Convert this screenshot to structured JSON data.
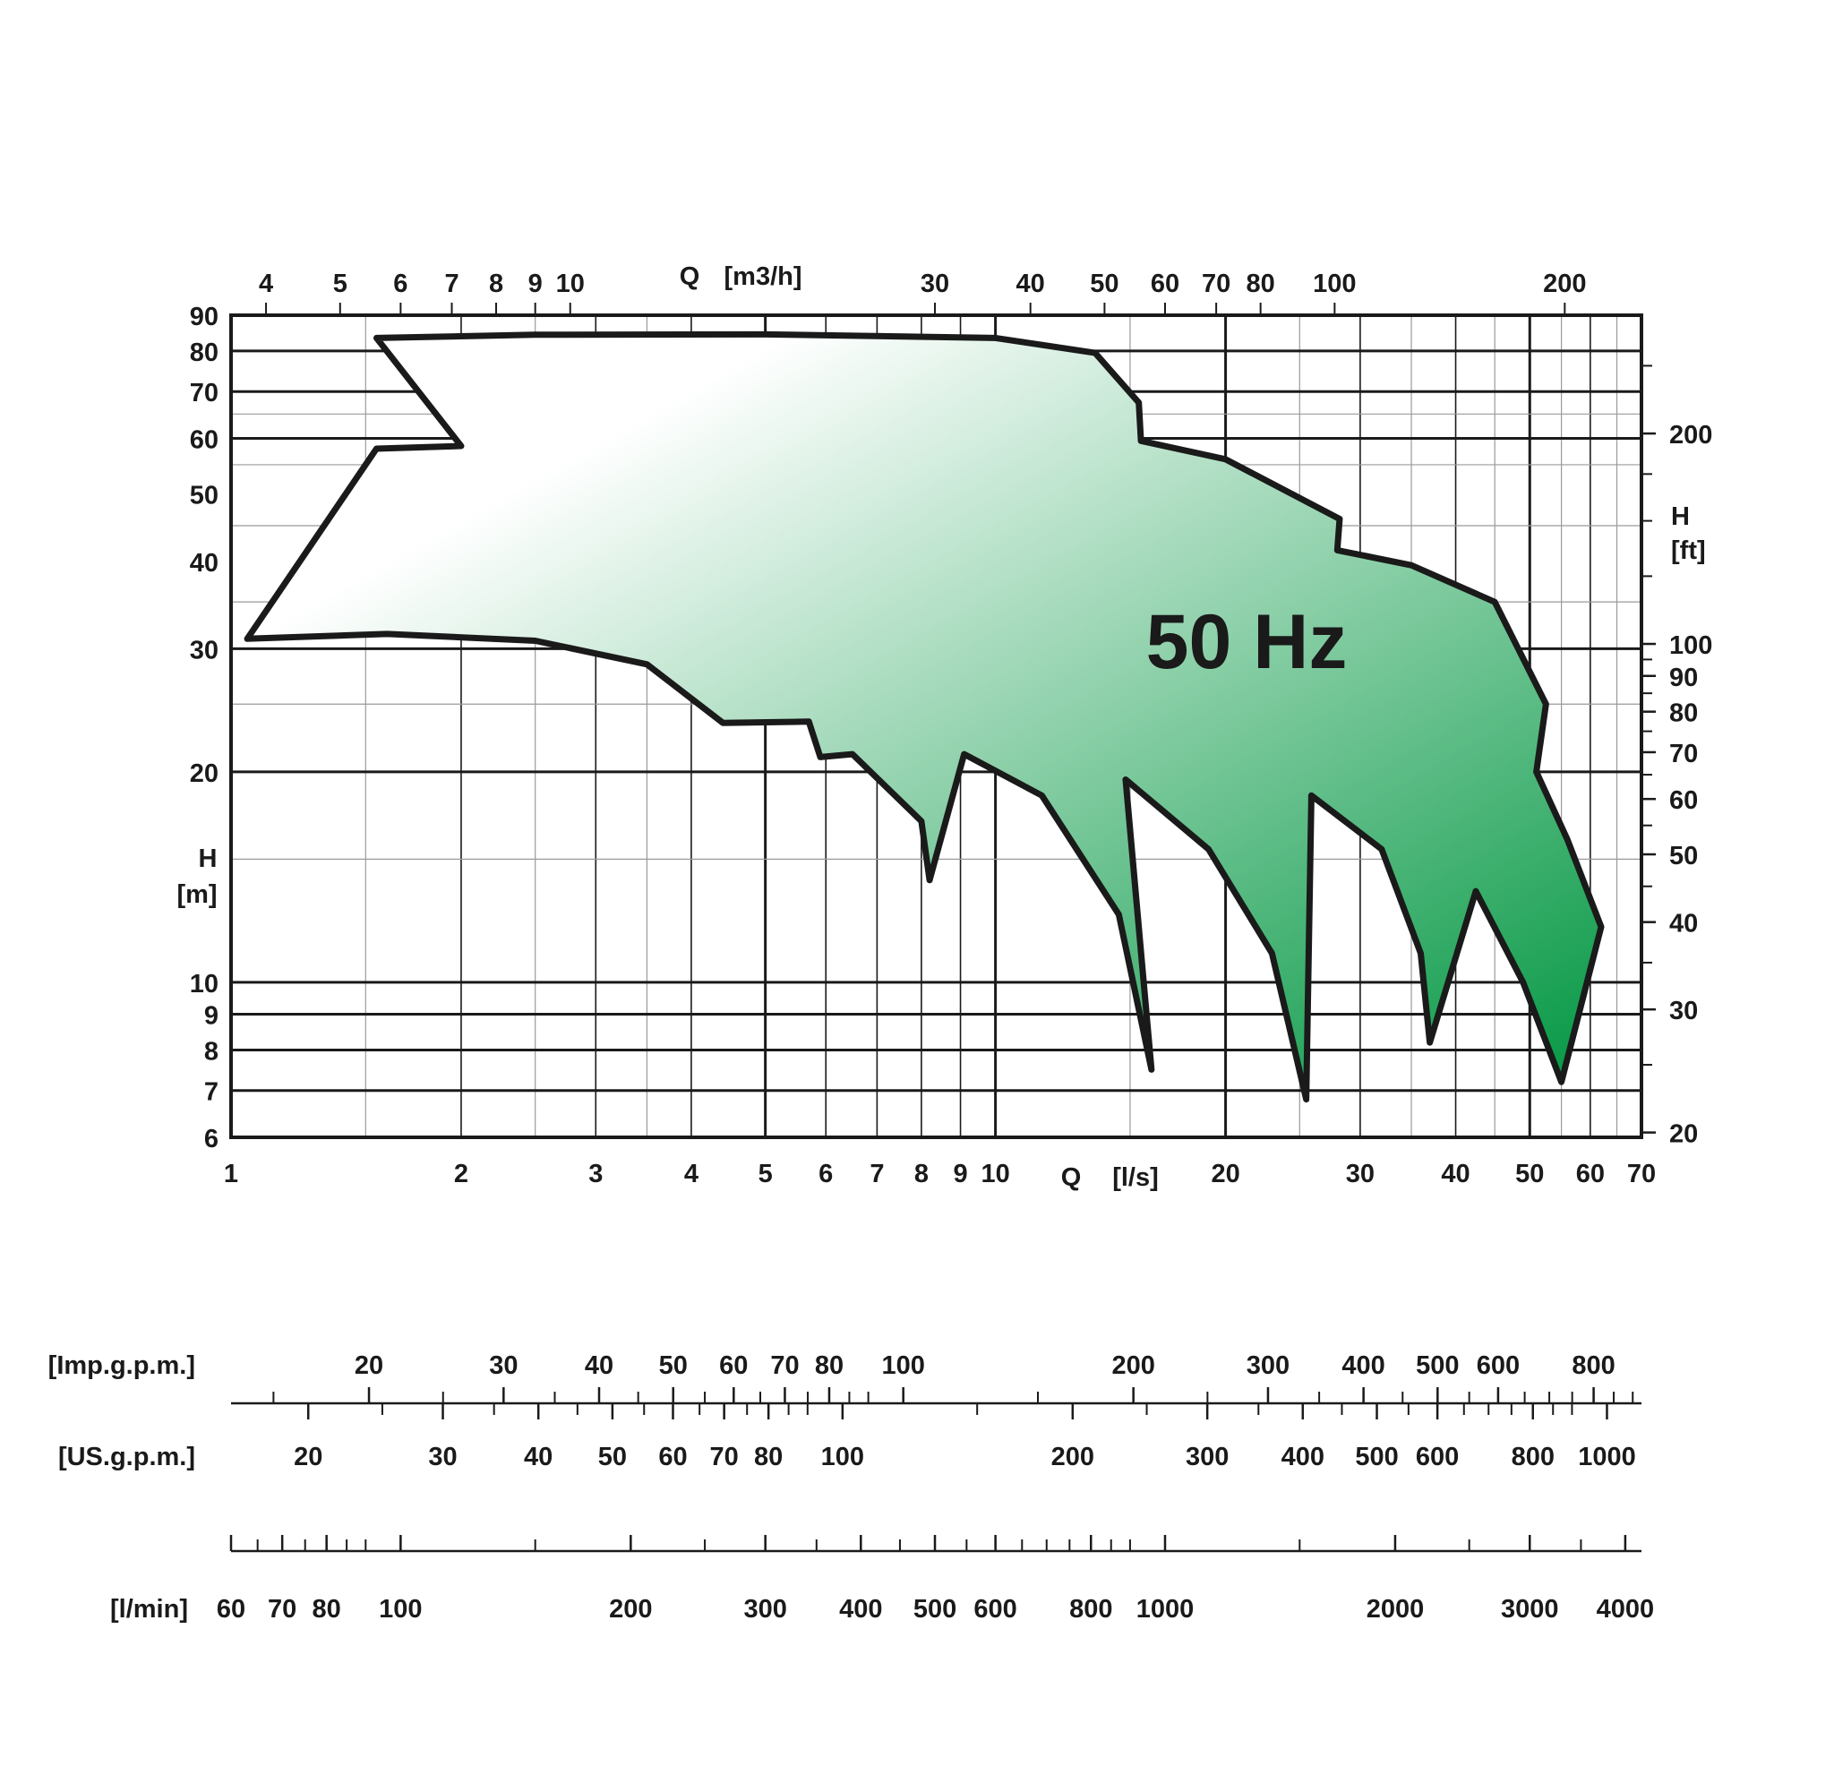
{
  "chart_data": {
    "type": "area",
    "title": "",
    "annotation": "50 Hz",
    "scale": "log-log",
    "grid": true,
    "colors": {
      "fill_start": "#ffffff",
      "fill_end": "#009640",
      "outline": "#1a1a1a",
      "grid": "#1a1a1a"
    },
    "x_axis": {
      "label": "Q",
      "unit": "[l/s]",
      "range": [
        1,
        70
      ],
      "ticks": [
        1,
        2,
        3,
        4,
        5,
        6,
        7,
        8,
        9,
        10,
        20,
        30,
        40,
        50,
        60,
        70
      ],
      "major_grid": [
        2,
        3,
        4,
        5,
        6,
        7,
        8,
        9,
        10,
        20,
        30,
        40,
        50,
        60,
        70
      ],
      "minor_grid": [
        1.5,
        2.5,
        3.5,
        15,
        25,
        35,
        45,
        55,
        65
      ]
    },
    "x2_axis": {
      "label": "Q",
      "unit": "[m3/h]",
      "range": [
        3.6,
        252
      ],
      "ticks": [
        4,
        5,
        6,
        7,
        8,
        9,
        10,
        30,
        40,
        50,
        60,
        70,
        80,
        100,
        200
      ]
    },
    "y_axis": {
      "label": "H",
      "unit": "[m]",
      "range": [
        6,
        90
      ],
      "ticks": [
        6,
        7,
        8,
        9,
        10,
        20,
        30,
        40,
        50,
        60,
        70,
        80,
        90
      ],
      "major_grid": [
        7,
        8,
        9,
        10,
        20,
        30,
        60,
        70,
        80
      ],
      "minor_grid": [
        15,
        25,
        35,
        45,
        55,
        65
      ]
    },
    "y2_axis": {
      "label": "H",
      "unit": "[ft]",
      "range": [
        19.7,
        295.3
      ],
      "ticks": [
        20,
        30,
        40,
        50,
        60,
        70,
        80,
        90,
        100,
        200
      ],
      "minor_ticks": [
        25,
        35,
        45,
        55,
        65,
        75,
        85,
        95,
        125,
        150,
        175,
        250
      ]
    },
    "flow_scales": [
      {
        "name": "[Imp.g.p.m.]",
        "range": [
          13.2,
          924
        ],
        "ticks": [
          20,
          30,
          40,
          50,
          60,
          70,
          80,
          100,
          200,
          300,
          400,
          500,
          600,
          800
        ]
      },
      {
        "name": "[US.g.p.m.]",
        "range": [
          15.85,
          1110
        ],
        "ticks": [
          20,
          30,
          40,
          50,
          60,
          70,
          80,
          100,
          200,
          300,
          400,
          500,
          600,
          800,
          1000
        ]
      },
      {
        "name": "[l/min]",
        "range": [
          60,
          4200
        ],
        "ticks": [
          60,
          70,
          80,
          100,
          200,
          300,
          400,
          500,
          600,
          800,
          1000,
          2000,
          3000,
          4000
        ]
      }
    ],
    "series": [
      {
        "type": "area",
        "outline": [
          [
            1.55,
            83.5
          ],
          [
            2.0,
            58.5
          ],
          [
            1.55,
            58.0
          ],
          [
            1.05,
            31.0
          ],
          [
            1.6,
            31.5
          ],
          [
            2.5,
            30.8
          ],
          [
            3.5,
            28.5
          ],
          [
            4.4,
            23.5
          ],
          [
            5.7,
            23.6
          ],
          [
            5.9,
            21.0
          ],
          [
            6.5,
            21.2
          ],
          [
            8.0,
            17.0
          ],
          [
            8.2,
            14.0
          ],
          [
            9.1,
            21.2
          ],
          [
            11.5,
            18.5
          ],
          [
            14.5,
            12.5
          ],
          [
            16.0,
            7.5
          ],
          [
            14.8,
            19.5
          ],
          [
            19.0,
            15.5
          ],
          [
            23.0,
            11.0
          ],
          [
            25.5,
            6.8
          ],
          [
            25.9,
            18.5
          ],
          [
            32.0,
            15.5
          ],
          [
            36.0,
            11.0
          ],
          [
            37.0,
            8.2
          ],
          [
            42.5,
            13.5
          ],
          [
            49.0,
            10.0
          ],
          [
            55.0,
            7.2
          ],
          [
            62.0,
            12.0
          ],
          [
            56.0,
            16.0
          ],
          [
            51.0,
            20.0
          ],
          [
            52.5,
            25.0
          ],
          [
            45.0,
            35.0
          ],
          [
            35.0,
            39.5
          ],
          [
            28.0,
            41.5
          ],
          [
            28.2,
            46.0
          ],
          [
            20.0,
            56.0
          ],
          [
            15.5,
            59.5
          ],
          [
            15.4,
            67.5
          ],
          [
            13.5,
            79.5
          ],
          [
            10.0,
            83.5
          ],
          [
            5.0,
            84.5
          ],
          [
            2.5,
            84.4
          ],
          [
            1.55,
            83.5
          ]
        ]
      }
    ]
  }
}
